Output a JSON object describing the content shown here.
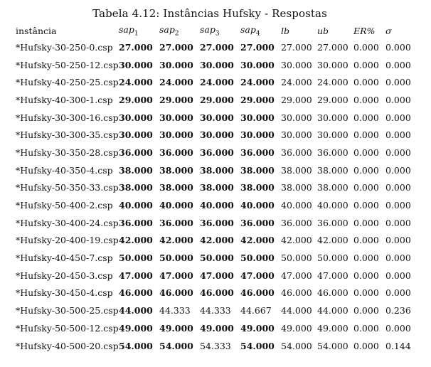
{
  "table": {
    "caption": "Tabela 4.12: Instâncias Hufsky - Respostas",
    "headers": [
      {
        "base": "instância",
        "sub": "",
        "italic": false
      },
      {
        "base": "sap",
        "sub": "1",
        "italic": true
      },
      {
        "base": "sap",
        "sub": "2",
        "italic": true
      },
      {
        "base": "sap",
        "sub": "3",
        "italic": true
      },
      {
        "base": "sap",
        "sub": "4",
        "italic": true
      },
      {
        "base": "lb",
        "sub": "",
        "italic": true
      },
      {
        "base": "ub",
        "sub": "",
        "italic": true
      },
      {
        "base": "ER%",
        "sub": "",
        "italic": true
      },
      {
        "base": "σ",
        "sub": "",
        "italic": true
      }
    ],
    "rows": [
      {
        "cells": [
          "*Hufsky-30-250-0.csp",
          "27.000",
          "27.000",
          "27.000",
          "27.000",
          "27.000",
          "27.000",
          "0.000",
          "0.000"
        ],
        "bold": [
          false,
          true,
          true,
          true,
          true,
          false,
          false,
          false,
          false
        ]
      },
      {
        "cells": [
          "*Hufsky-50-250-12.csp",
          "30.000",
          "30.000",
          "30.000",
          "30.000",
          "30.000",
          "30.000",
          "0.000",
          "0.000"
        ],
        "bold": [
          false,
          true,
          true,
          true,
          true,
          false,
          false,
          false,
          false
        ]
      },
      {
        "cells": [
          "*Hufsky-40-250-25.csp",
          "24.000",
          "24.000",
          "24.000",
          "24.000",
          "24.000",
          "24.000",
          "0.000",
          "0.000"
        ],
        "bold": [
          false,
          true,
          true,
          true,
          true,
          false,
          false,
          false,
          false
        ]
      },
      {
        "cells": [
          "*Hufsky-40-300-1.csp",
          "29.000",
          "29.000",
          "29.000",
          "29.000",
          "29.000",
          "29.000",
          "0.000",
          "0.000"
        ],
        "bold": [
          false,
          true,
          true,
          true,
          true,
          false,
          false,
          false,
          false
        ]
      },
      {
        "cells": [
          "*Hufsky-30-300-16.csp",
          "30.000",
          "30.000",
          "30.000",
          "30.000",
          "30.000",
          "30.000",
          "0.000",
          "0.000"
        ],
        "bold": [
          false,
          true,
          true,
          true,
          true,
          false,
          false,
          false,
          false
        ]
      },
      {
        "cells": [
          "*Hufsky-30-300-35.csp",
          "30.000",
          "30.000",
          "30.000",
          "30.000",
          "30.000",
          "30.000",
          "0.000",
          "0.000"
        ],
        "bold": [
          false,
          true,
          true,
          true,
          true,
          false,
          false,
          false,
          false
        ]
      },
      {
        "cells": [
          "*Hufsky-30-350-28.csp",
          "36.000",
          "36.000",
          "36.000",
          "36.000",
          "36.000",
          "36.000",
          "0.000",
          "0.000"
        ],
        "bold": [
          false,
          true,
          true,
          true,
          true,
          false,
          false,
          false,
          false
        ]
      },
      {
        "cells": [
          "*Hufsky-40-350-4.csp",
          "38.000",
          "38.000",
          "38.000",
          "38.000",
          "38.000",
          "38.000",
          "0.000",
          "0.000"
        ],
        "bold": [
          false,
          true,
          true,
          true,
          true,
          false,
          false,
          false,
          false
        ]
      },
      {
        "cells": [
          "*Hufsky-50-350-33.csp",
          "38.000",
          "38.000",
          "38.000",
          "38.000",
          "38.000",
          "38.000",
          "0.000",
          "0.000"
        ],
        "bold": [
          false,
          true,
          true,
          true,
          true,
          false,
          false,
          false,
          false
        ]
      },
      {
        "cells": [
          "*Hufsky-50-400-2.csp",
          "40.000",
          "40.000",
          "40.000",
          "40.000",
          "40.000",
          "40.000",
          "0.000",
          "0.000"
        ],
        "bold": [
          false,
          true,
          true,
          true,
          true,
          false,
          false,
          false,
          false
        ]
      },
      {
        "cells": [
          "*Hufsky-30-400-24.csp",
          "36.000",
          "36.000",
          "36.000",
          "36.000",
          "36.000",
          "36.000",
          "0.000",
          "0.000"
        ],
        "bold": [
          false,
          true,
          true,
          true,
          true,
          false,
          false,
          false,
          false
        ]
      },
      {
        "cells": [
          "*Hufsky-20-400-19.csp",
          "42.000",
          "42.000",
          "42.000",
          "42.000",
          "42.000",
          "42.000",
          "0.000",
          "0.000"
        ],
        "bold": [
          false,
          true,
          true,
          true,
          true,
          false,
          false,
          false,
          false
        ]
      },
      {
        "cells": [
          "*Hufsky-40-450-7.csp",
          "50.000",
          "50.000",
          "50.000",
          "50.000",
          "50.000",
          "50.000",
          "0.000",
          "0.000"
        ],
        "bold": [
          false,
          true,
          true,
          true,
          true,
          false,
          false,
          false,
          false
        ]
      },
      {
        "cells": [
          "*Hufsky-20-450-3.csp",
          "47.000",
          "47.000",
          "47.000",
          "47.000",
          "47.000",
          "47.000",
          "0.000",
          "0.000"
        ],
        "bold": [
          false,
          true,
          true,
          true,
          true,
          false,
          false,
          false,
          false
        ]
      },
      {
        "cells": [
          "*Hufsky-30-450-4.csp",
          "46.000",
          "46.000",
          "46.000",
          "46.000",
          "46.000",
          "46.000",
          "0.000",
          "0.000"
        ],
        "bold": [
          false,
          true,
          true,
          true,
          true,
          false,
          false,
          false,
          false
        ]
      },
      {
        "cells": [
          "*Hufsky-30-500-25.csp",
          "44.000",
          "44.333",
          "44.333",
          "44.667",
          "44.000",
          "44.000",
          "0.000",
          "0.236"
        ],
        "bold": [
          false,
          true,
          false,
          false,
          false,
          false,
          false,
          false,
          false
        ]
      },
      {
        "cells": [
          "*Hufsky-50-500-12.csp",
          "49.000",
          "49.000",
          "49.000",
          "49.000",
          "49.000",
          "49.000",
          "0.000",
          "0.000"
        ],
        "bold": [
          false,
          true,
          true,
          true,
          true,
          false,
          false,
          false,
          false
        ]
      },
      {
        "cells": [
          "*Hufsky-40-500-20.csp",
          "54.000",
          "54.000",
          "54.333",
          "54.000",
          "54.000",
          "54.000",
          "0.000",
          "0.144"
        ],
        "bold": [
          false,
          true,
          true,
          false,
          true,
          false,
          false,
          false,
          false
        ]
      }
    ]
  }
}
